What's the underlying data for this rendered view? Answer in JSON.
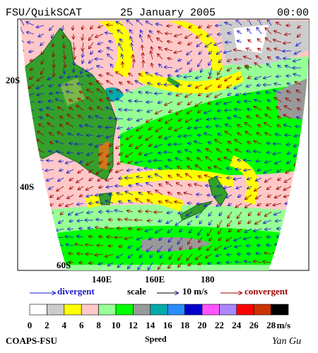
{
  "header": {
    "title": "FSU/QuikSCAT",
    "date": "25 January 2005",
    "time": "00:00"
  },
  "map": {
    "lat_labels": [
      "20S",
      "40S",
      "60S"
    ],
    "lon_labels": [
      "140E",
      "160E",
      "180"
    ]
  },
  "legend": {
    "divergent": "divergent",
    "scale": "scale",
    "scale_value": "10 m/s",
    "convergent": "convergent"
  },
  "colorbar": {
    "labels": [
      "0",
      "2",
      "4",
      "6",
      "8",
      "10",
      "12",
      "14",
      "16",
      "18",
      "20",
      "22",
      "24",
      "26",
      "28"
    ],
    "unit": "m/s",
    "title": "Speed",
    "colors": [
      "#ffffff",
      "#cccccc",
      "#ffff00",
      "#ffc8c8",
      "#96ff96",
      "#00ff00",
      "#999999",
      "#00aaaa",
      "#2b8cff",
      "#0000cc",
      "#ff55ff",
      "#aa88ff",
      "#ff0000",
      "#cc3300",
      "#000000"
    ]
  },
  "footer": {
    "left": "COAPS-FSU",
    "right": "Yan Gu"
  }
}
